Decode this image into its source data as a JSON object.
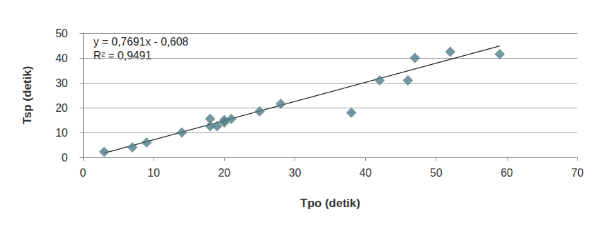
{
  "chart_data": {
    "type": "scatter",
    "x_label": "Tpo (detik)",
    "y_label": "Tsp (detik)",
    "xlim": [
      0,
      70
    ],
    "xticks": [
      0,
      10,
      20,
      30,
      40,
      50,
      60,
      70
    ],
    "ylim": [
      0,
      50
    ],
    "yticks": [
      0,
      10,
      20,
      30,
      40,
      50
    ],
    "grid": true,
    "annotations": [
      "y = 0,7691x - 0,608",
      "R² = 0,9491"
    ],
    "series": [
      {
        "type": "scatter",
        "marker": "diamond",
        "color": "#4e7c84",
        "x": [
          3,
          7,
          9,
          14,
          18,
          18,
          19,
          20,
          20,
          21,
          25,
          28,
          38,
          42,
          46,
          47,
          52,
          59
        ],
        "values": [
          2.2,
          4,
          6,
          10,
          15.5,
          12.5,
          12.5,
          15,
          14,
          15.5,
          18.5,
          21.5,
          18,
          31,
          31,
          40,
          42.5,
          41.5
        ]
      },
      {
        "type": "line",
        "line_style": "solid",
        "color": "#1a1a1a",
        "x": [
          3,
          59
        ],
        "values": [
          1.7,
          44.8
        ]
      }
    ]
  }
}
